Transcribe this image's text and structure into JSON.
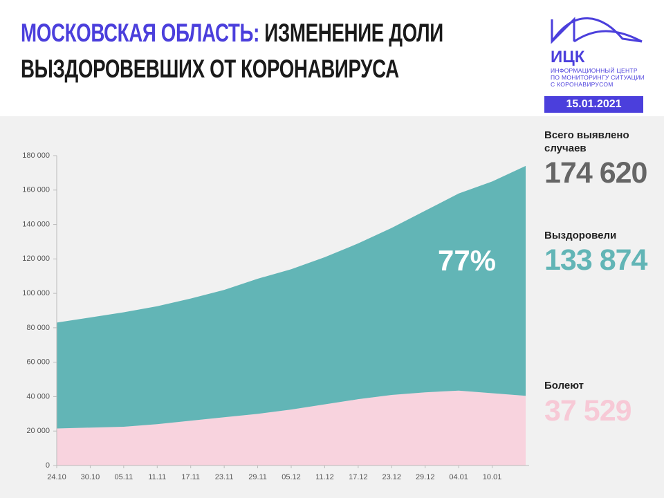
{
  "header": {
    "title_highlight": "МОСКОВСКАЯ ОБЛАСТЬ:",
    "title": "ИЗМЕНЕНИЕ ДОЛИ ВЫЗДОРОВЕВШИХ ОТ КОРОНАВИРУСА",
    "logo_name": "ИЦК",
    "logo_caption": [
      "ИНФОРМАЦИОННЫЙ ЦЕНТР",
      "ПО МОНИТОРИНГУ СИТУАЦИИ",
      "С КОРОНАВИРУСОМ"
    ],
    "date": "15.01.2021"
  },
  "side_panel": {
    "total_label": "Всего выявлено случаев",
    "total_value": "174 620",
    "recovered_value": "133 874",
    "active_value": "37 529"
  },
  "chart_data": {
    "type": "stacked-area",
    "categories": [
      "24.10",
      "30.10",
      "05.11",
      "11.11",
      "17.11",
      "23.11",
      "29.11",
      "05.12",
      "11.12",
      "17.12",
      "23.12",
      "29.12",
      "04.01",
      "10.01",
      null
    ],
    "series": [
      {
        "name": "Болеют",
        "color": "#f8d3de",
        "values": [
          21500,
          22000,
          22500,
          24000,
          26000,
          28000,
          30000,
          32500,
          35500,
          38500,
          41000,
          42500,
          43500,
          42000,
          40500
        ]
      },
      {
        "name": "Выздоровели",
        "color": "#62b5b6",
        "values": [
          61500,
          64000,
          66500,
          68500,
          71000,
          74000,
          78500,
          81500,
          85500,
          90500,
          97000,
          105500,
          114500,
          123000,
          133500
        ]
      }
    ],
    "ylim": [
      0,
      180000
    ],
    "yticks": [
      0,
      {
        "value": 20000,
        "label": "20 000"
      },
      {
        "value": 40000,
        "label": "40 000"
      },
      {
        "value": 60000,
        "label": "60 000"
      },
      {
        "value": 80000,
        "label": "80 000"
      },
      {
        "value": 100000,
        "label": "100 000"
      },
      {
        "value": 120000,
        "label": "120 000"
      },
      {
        "value": 140000,
        "label": "140 000"
      },
      {
        "value": 160000,
        "label": "160 000"
      },
      {
        "value": 180000,
        "label": "180 000"
      }
    ],
    "annotation": "77%"
  }
}
